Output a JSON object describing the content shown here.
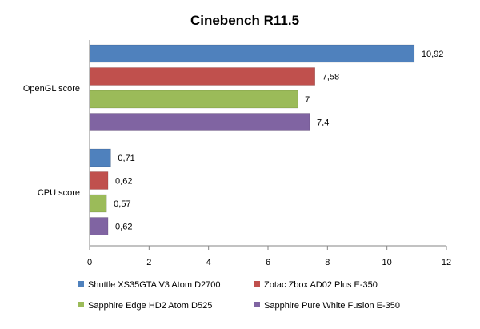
{
  "chart_data": {
    "type": "bar",
    "orientation": "horizontal",
    "title": "Cinebench R11.5",
    "xlabel": "",
    "ylabel": "",
    "xlim": [
      0,
      12
    ],
    "x_ticks": [
      "0",
      "2",
      "4",
      "6",
      "8",
      "10",
      "12"
    ],
    "categories": [
      "OpenGL score",
      "CPU score"
    ],
    "series": [
      {
        "name": "Shuttle XS35GTA V3 Atom D2700",
        "color": "#4F81BD",
        "values": [
          10.92,
          0.71
        ],
        "labels": [
          "10,92",
          "0,71"
        ]
      },
      {
        "name": "Zotac Zbox AD02 Plus E-350",
        "color": "#C0504D",
        "values": [
          7.58,
          0.62
        ],
        "labels": [
          "7,58",
          "0,62"
        ]
      },
      {
        "name": "Sapphire Edge HD2 Atom D525",
        "color": "#9BBB59",
        "values": [
          7,
          0.57
        ],
        "labels": [
          "7",
          "0,57"
        ]
      },
      {
        "name": "Sapphire Pure White Fusion E-350",
        "color": "#8064A2",
        "values": [
          7.4,
          0.62
        ],
        "labels": [
          "7,4",
          "0,62"
        ]
      }
    ],
    "grid": false,
    "legend_position": "bottom"
  }
}
